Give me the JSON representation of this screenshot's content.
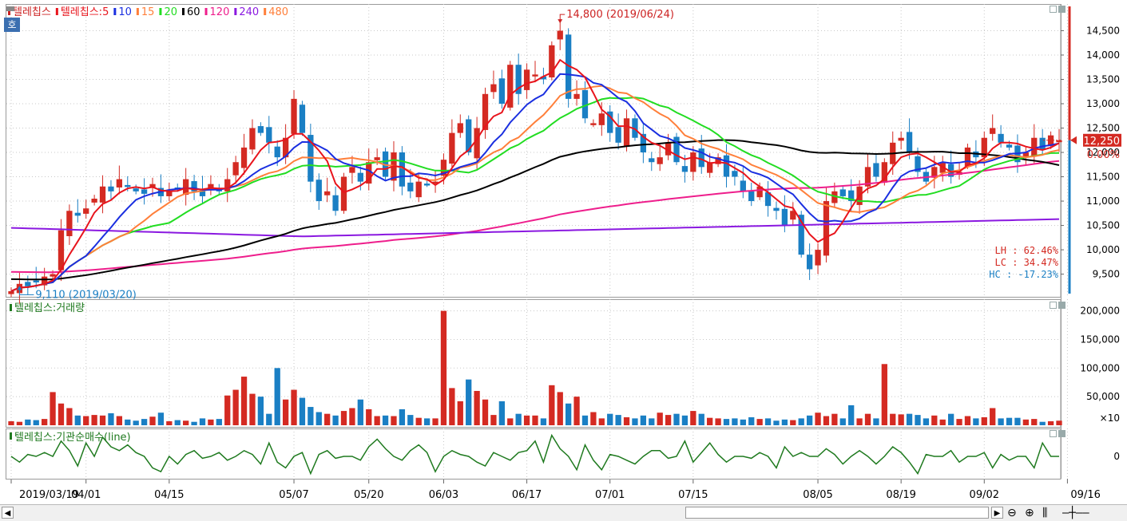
{
  "chart_data": [
    {
      "type": "candlestick",
      "title": "텔레칩스",
      "legend": [
        {
          "label": "텔레칩스",
          "color": "#cc2222"
        },
        {
          "label": "텔레칩스:5",
          "color": "#e8141c"
        },
        {
          "label": "10",
          "color": "#1a2fe0"
        },
        {
          "label": "15",
          "color": "#ff7f3a"
        },
        {
          "label": "20",
          "color": "#22dd22"
        },
        {
          "label": "60",
          "color": "#000000"
        },
        {
          "label": "120",
          "color": "#ee1e8c"
        },
        {
          "label": "240",
          "color": "#8a18e0"
        },
        {
          "label": "480",
          "color": "#ff7f3a"
        }
      ],
      "ylim": [
        9100,
        14950
      ],
      "yticks": [
        9500,
        10000,
        10500,
        11000,
        11500,
        12000,
        12500,
        13000,
        13500,
        14000,
        14500
      ],
      "ytick_labels": [
        "9,500",
        "10,000",
        "10,500",
        "11,000",
        "11,500",
        "12,000",
        "12,500",
        "13,000",
        "13,500",
        "14,000",
        "14,500"
      ],
      "x_labels": [
        {
          "i": 0,
          "label": "2019/03/19"
        },
        {
          "i": 9,
          "label": "04/01"
        },
        {
          "i": 19,
          "label": "04/15"
        },
        {
          "i": 34,
          "label": "05/07"
        },
        {
          "i": 43,
          "label": "05/20"
        },
        {
          "i": 52,
          "label": "06/03"
        },
        {
          "i": 62,
          "label": "06/17"
        },
        {
          "i": 72,
          "label": "07/01"
        },
        {
          "i": 82,
          "label": "07/15"
        },
        {
          "i": 97,
          "label": "08/05"
        },
        {
          "i": 107,
          "label": "08/19"
        },
        {
          "i": 117,
          "label": "09/02"
        },
        {
          "i": 127,
          "label": "09/16"
        }
      ],
      "close": [
        9150,
        9300,
        9250,
        9350,
        9450,
        9500,
        10400,
        10800,
        10700,
        10850,
        11050,
        11300,
        11200,
        11450,
        11300,
        11200,
        11150,
        11350,
        11100,
        11200,
        11250,
        11450,
        11200,
        11100,
        11350,
        11200,
        11450,
        11800,
        12100,
        12500,
        12400,
        12200,
        11900,
        12300,
        13100,
        12400,
        11400,
        11000,
        11200,
        10800,
        11500,
        11700,
        11400,
        11800,
        11900,
        11500,
        12000,
        11300,
        11200,
        11400,
        11350,
        11400,
        11850,
        12400,
        12600,
        12000,
        12500,
        13200,
        13400,
        13000,
        13800,
        13200,
        13700,
        13600,
        13500,
        14200,
        14500,
        13100,
        13200,
        12700,
        12600,
        12800,
        12400,
        12200,
        12700,
        12300,
        12000,
        11800,
        11900,
        12200,
        11800,
        11600,
        12000,
        11700,
        11800,
        11900,
        11500,
        11500,
        11200,
        11000,
        11300,
        10900,
        10800,
        10500,
        10800,
        9900,
        9600,
        10000,
        11000,
        11200,
        11100,
        11000,
        11300,
        11700,
        11500,
        11800,
        12200,
        12300,
        12000,
        11600,
        11400,
        11700,
        11800,
        11500,
        11600,
        12100,
        11900,
        12300,
        12500,
        12200,
        12100,
        11800,
        12000,
        12300,
        12050,
        12350,
        12250
      ],
      "annotations": [
        {
          "i": 66,
          "price": 14800,
          "label": "14,800 (2019/06/24)",
          "color": "#cc2222"
        },
        {
          "i": 1,
          "price": 9110,
          "label": "9,110 (2019/03/20)",
          "color": "#1a7fc4"
        }
      ],
      "last_price": "12,250",
      "last_change": "0.00%",
      "stats": [
        "LH :  62.46%",
        "LC :  34.47%",
        "HC : -17.23%"
      ]
    },
    {
      "type": "bar",
      "title": "텔레칩스:거래량",
      "ylim": [
        0,
        212000
      ],
      "yticks": [
        50000,
        100000,
        150000,
        200000
      ],
      "ytick_labels": [
        "50,000",
        "100,000",
        "150,000",
        "200,000"
      ],
      "unit": "×10",
      "values": [
        7000,
        6000,
        10000,
        9000,
        11000,
        58000,
        38000,
        30000,
        17000,
        16000,
        18000,
        17000,
        21000,
        16000,
        10000,
        8000,
        11000,
        15000,
        22000,
        7000,
        9000,
        8000,
        6000,
        12000,
        10000,
        11000,
        52000,
        62000,
        85000,
        55000,
        50000,
        20000,
        100000,
        45000,
        62000,
        48000,
        32000,
        23000,
        20000,
        17000,
        25000,
        30000,
        45000,
        28000,
        16000,
        17000,
        16000,
        28000,
        18000,
        13000,
        12000,
        12000,
        200000,
        65000,
        42000,
        80000,
        60000,
        45000,
        18000,
        42000,
        12000,
        20000,
        17000,
        17000,
        12000,
        70000,
        58000,
        38000,
        50000,
        17000,
        23000,
        12000,
        20000,
        18000,
        14000,
        12000,
        17000,
        12000,
        22000,
        18000,
        20000,
        17000,
        25000,
        20000,
        13000,
        12000,
        11000,
        12000,
        10000,
        14000,
        11000,
        12000,
        8000,
        10000,
        9000,
        12000,
        17000,
        22000,
        16000,
        20000,
        12000,
        35000,
        12000,
        20000,
        12000,
        107000,
        20000,
        19000,
        20000,
        18000,
        12000,
        17000,
        10000,
        20000,
        11000,
        16000,
        12000,
        14000,
        30000,
        12000,
        13000,
        13000,
        10000,
        11000,
        6000,
        7000,
        8000
      ]
    },
    {
      "type": "line",
      "title": "텔레칩스:기관순매수(line)",
      "ytick_labels": [
        "0"
      ],
      "values": [
        0,
        -3,
        1,
        0,
        2,
        0,
        8,
        3,
        -5,
        7,
        0,
        10,
        5,
        3,
        6,
        2,
        0,
        -6,
        -8,
        0,
        -4,
        1,
        3,
        -1,
        0,
        2,
        -2,
        0,
        3,
        1,
        -4,
        7,
        -3,
        -6,
        0,
        2,
        -9,
        1,
        3,
        -1,
        0,
        0,
        -2,
        5,
        9,
        4,
        0,
        -2,
        3,
        6,
        2,
        -8,
        0,
        3,
        1,
        0,
        -3,
        -5,
        2,
        0,
        -2,
        2,
        3,
        8,
        -3,
        11,
        4,
        0,
        -7,
        6,
        -2,
        -7,
        1,
        0,
        -2,
        -4,
        0,
        3,
        3,
        -1,
        0,
        8,
        -3,
        2,
        7,
        1,
        -3,
        0,
        0,
        -1,
        2,
        0,
        -6,
        5,
        0,
        2,
        0,
        0,
        4,
        1,
        -4,
        0,
        3,
        0,
        -4,
        0,
        5,
        2,
        -3,
        -9,
        1,
        0,
        0,
        3,
        -3,
        0,
        0,
        2,
        -6,
        1,
        -2,
        0,
        0,
        -6,
        7,
        0,
        0
      ],
      "series_color": "#1f7a1f"
    }
  ],
  "ui": {
    "tag": "호",
    "left_arrow": "◀",
    "right_arrow": "▶",
    "zoom_out": "⊖",
    "zoom_in": "⊕",
    "columns_icon": "⫼",
    "slider": "—┼——"
  }
}
